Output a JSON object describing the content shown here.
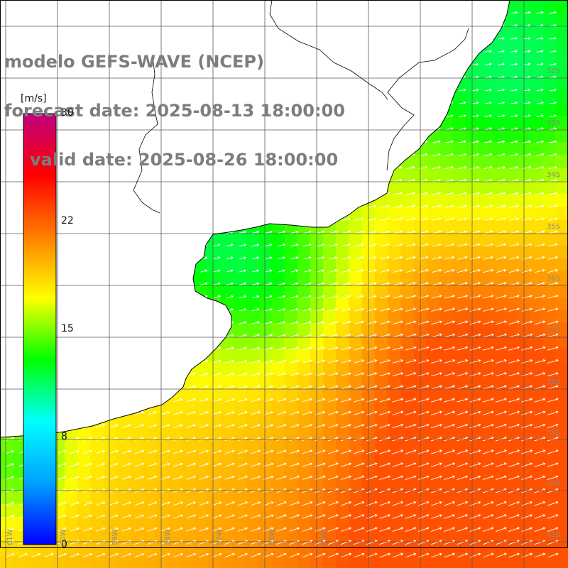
{
  "title": {
    "line1": "modelo GEFS-WAVE (NCEP)",
    "line2": "forecast date: 2025-08-13 18:00:00",
    "line3": "valid date: 2025-08-26 18:00:00"
  },
  "colorbar": {
    "unit": "[m/s]",
    "ticks": [
      "30",
      "22",
      "15",
      "8",
      "0"
    ],
    "range": [
      0,
      30
    ],
    "colors": [
      "#0000ff",
      "#00a0ff",
      "#00ffff",
      "#00ff00",
      "#ffff00",
      "#ff8000",
      "#ff0000",
      "#c00080"
    ]
  },
  "map": {
    "lat_labels": [
      "32S",
      "33S",
      "34S",
      "35S",
      "36S",
      "37S",
      "38S",
      "39S",
      "40S",
      "41S"
    ],
    "lon_labels": [
      "60W",
      "59W",
      "58W",
      "57W",
      "56W",
      "55W"
    ],
    "left_edge_label": "61W",
    "colors": {
      "land": "#ffffff",
      "grid": "#5a5a5a",
      "coast": "#000000",
      "arrow": "#ffffff",
      "label": "#8a8a8a",
      "title": "#7d7d7d"
    }
  }
}
